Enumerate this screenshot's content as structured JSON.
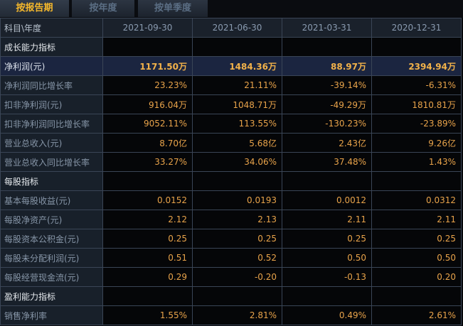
{
  "tabs": [
    {
      "label": "按报告期",
      "active": true
    },
    {
      "label": "按年度",
      "active": false
    },
    {
      "label": "按单季度",
      "active": false
    }
  ],
  "table": {
    "header_label": "科目\\年度",
    "periods": [
      "2021-09-30",
      "2021-06-30",
      "2021-03-31",
      "2020-12-31"
    ],
    "rows": [
      {
        "label": "成长能力指标",
        "type": "section",
        "values": [
          "",
          "",
          "",
          ""
        ]
      },
      {
        "label": "净利润(元)",
        "type": "highlight",
        "values": [
          "1171.50万",
          "1484.36万",
          "88.97万",
          "2394.94万"
        ]
      },
      {
        "label": "净利润同比增长率",
        "type": "normal",
        "values": [
          "23.23%",
          "21.11%",
          "-39.14%",
          "-6.31%"
        ]
      },
      {
        "label": "扣非净利润(元)",
        "type": "normal",
        "values": [
          "916.04万",
          "1048.71万",
          "-49.29万",
          "1810.81万"
        ]
      },
      {
        "label": "扣非净利润同比增长率",
        "type": "normal",
        "values": [
          "9052.11%",
          "113.55%",
          "-130.23%",
          "-23.89%"
        ]
      },
      {
        "label": "营业总收入(元)",
        "type": "normal",
        "values": [
          "8.70亿",
          "5.68亿",
          "2.43亿",
          "9.26亿"
        ]
      },
      {
        "label": "营业总收入同比增长率",
        "type": "normal",
        "values": [
          "33.27%",
          "34.06%",
          "37.48%",
          "1.43%"
        ]
      },
      {
        "label": "每股指标",
        "type": "section",
        "values": [
          "",
          "",
          "",
          ""
        ]
      },
      {
        "label": "基本每股收益(元)",
        "type": "normal",
        "values": [
          "0.0152",
          "0.0193",
          "0.0012",
          "0.0312"
        ]
      },
      {
        "label": "每股净资产(元)",
        "type": "normal",
        "values": [
          "2.12",
          "2.13",
          "2.11",
          "2.11"
        ]
      },
      {
        "label": "每股资本公积金(元)",
        "type": "normal",
        "values": [
          "0.25",
          "0.25",
          "0.25",
          "0.25"
        ]
      },
      {
        "label": "每股未分配利润(元)",
        "type": "normal",
        "values": [
          "0.51",
          "0.52",
          "0.50",
          "0.50"
        ]
      },
      {
        "label": "每股经营现金流(元)",
        "type": "normal",
        "values": [
          "0.29",
          "-0.20",
          "-0.13",
          "0.20"
        ]
      },
      {
        "label": "盈利能力指标",
        "type": "section",
        "values": [
          "",
          "",
          "",
          ""
        ]
      },
      {
        "label": "销售净利率",
        "type": "normal",
        "values": [
          "1.55%",
          "2.81%",
          "0.49%",
          "2.61%"
        ]
      }
    ]
  },
  "colors": {
    "active_tab": "#f5b82c",
    "value_text": "#e8a34a",
    "highlight_row": "#1b2540",
    "grid": "#3a4556"
  }
}
